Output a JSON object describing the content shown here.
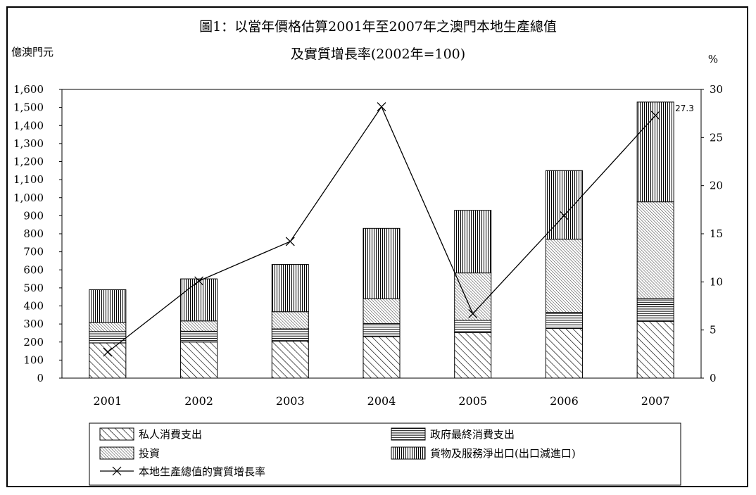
{
  "chart_data": {
    "type": "bar",
    "title": "圖1：以當年價格估算2001年至2007年之澳門本地生產總值",
    "subtitle": "及實質增長率(2002年=100)",
    "ylabel_left": "億澳門元",
    "ylabel_right": "%",
    "ylim_left": [
      0,
      1600
    ],
    "ylim_right": [
      0,
      30
    ],
    "yticks_left": [
      "0",
      "100",
      "200",
      "300",
      "400",
      "500",
      "600",
      "700",
      "800",
      "900",
      "1,000",
      "1,100",
      "1,200",
      "1,300",
      "1,400",
      "1,500",
      "1,600"
    ],
    "yticks_right": [
      "0",
      "5",
      "10",
      "15",
      "20",
      "25",
      "30"
    ],
    "categories": [
      "2001",
      "2002",
      "2003",
      "2004",
      "2005",
      "2006",
      "2007"
    ],
    "stacked": true,
    "series": [
      {
        "name": "私人消費支出",
        "pattern": "diag-wide",
        "values": [
          195,
          200,
          205,
          230,
          252,
          275,
          315
        ]
      },
      {
        "name": "政府最終消費支出",
        "pattern": "horizontal",
        "values": [
          63,
          60,
          68,
          72,
          68,
          90,
          127
        ]
      },
      {
        "name": "投資",
        "pattern": "diag-fine",
        "values": [
          50,
          57,
          95,
          138,
          263,
          405,
          535
        ]
      },
      {
        "name": "貨物及服務淨出口(出口減進口)",
        "pattern": "vertical",
        "values": [
          182,
          233,
          262,
          390,
          347,
          380,
          553
        ]
      }
    ],
    "line": {
      "name": "本地生產總值的實質增長率",
      "axis": "right",
      "values": [
        2.7,
        10.1,
        14.2,
        28.2,
        6.7,
        16.9,
        27.3
      ]
    },
    "annotation": "27.3",
    "legend_position": "bottom"
  }
}
